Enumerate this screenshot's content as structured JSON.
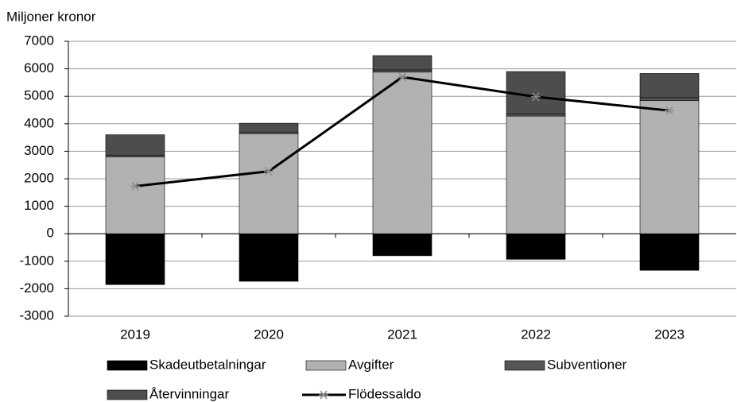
{
  "chart_data": {
    "type": "bar",
    "stacked": true,
    "y_label": "Miljoner kronor",
    "categories": [
      "2019",
      "2020",
      "2021",
      "2022",
      "2023"
    ],
    "series": [
      {
        "name": "Skadeutbetalningar",
        "color": "#000000",
        "values": [
          -1850,
          -1730,
          -800,
          -930,
          -1330
        ]
      },
      {
        "name": "Avgifter",
        "color": "#b2b2b2",
        "values": [
          2800,
          3640,
          5880,
          4280,
          4850
        ]
      },
      {
        "name": "Subventioner",
        "color": "#555555",
        "values": [
          60,
          60,
          80,
          80,
          100
        ]
      },
      {
        "name": "Återvinningar",
        "color": "#4d4d4d",
        "values": [
          740,
          320,
          520,
          1540,
          880
        ]
      },
      {
        "name": "Flödessaldo",
        "type": "line",
        "color": "#000000",
        "marker_color": "#8c8c8c",
        "values": [
          1730,
          2270,
          5700,
          4980,
          4480
        ]
      }
    ],
    "ylim": [
      -3000,
      7000
    ],
    "yticks": [
      -3000,
      -2000,
      -1000,
      0,
      1000,
      2000,
      3000,
      4000,
      5000,
      6000,
      7000
    ],
    "grid": true,
    "legend": "bottom"
  }
}
